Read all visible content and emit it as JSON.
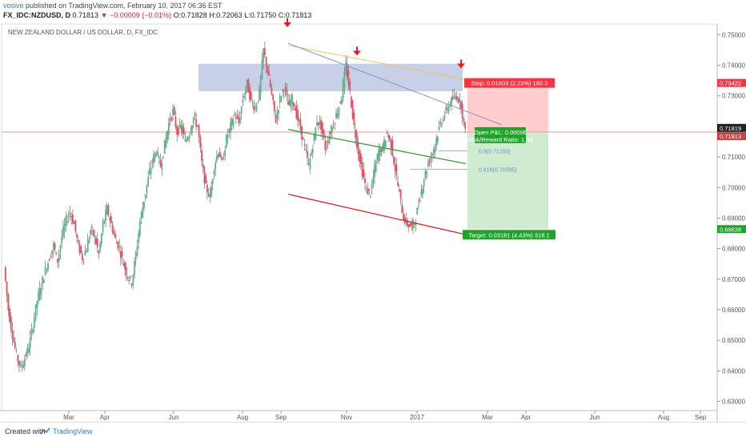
{
  "header": {
    "publisher": "vosive",
    "published_text": "published on TradingView.com, February 10, 2017 06:36 EST",
    "symbol": "FX_IDC:NZDUSD, D",
    "last": "0.71813",
    "change": "▼ −0.00009 (−0.01%)",
    "open": "O:0.71828",
    "high": "H:0.72063",
    "low": "L:0.71750",
    "close": "C:0.71813"
  },
  "chart_title": "NEW ZEALAND DOLLAR / US DOLLAR, D, FX_IDC",
  "footer": {
    "created_with": "Created with",
    "brand": "TradingView"
  },
  "colors": {
    "up": "#53b987",
    "down": "#eb4d5c",
    "stop": "#f23645",
    "target": "#22a12c",
    "zone": "#9aa9d6",
    "current": "#d04040"
  },
  "chart_data": {
    "type": "candlestick",
    "y_range": [
      0.627,
      0.7535
    ],
    "y_ticks": [
      "0.75000",
      "0.74000",
      "0.73000",
      "0.72000",
      "0.71000",
      "0.70000",
      "0.69000",
      "0.68000",
      "0.67000",
      "0.66000",
      "0.65000",
      "0.64000",
      "0.63000"
    ],
    "y_tick_values": [
      0.75,
      0.74,
      0.73,
      0.72,
      0.71,
      0.7,
      0.69,
      0.68,
      0.67,
      0.66,
      0.65,
      0.64,
      0.63
    ],
    "x_ticks": [
      "Mar",
      "Apr",
      "Jun",
      "Aug",
      "Sep",
      "Nov",
      "2017",
      "Mar",
      "Apr",
      "Jun",
      "Aug",
      "Sep"
    ],
    "price_labels": [
      {
        "text": "0.73422",
        "value": 0.73422,
        "kind": "stop"
      },
      {
        "text": "0.71819",
        "value": 0.71819,
        "kind": "dark"
      },
      {
        "text": "0.71813",
        "value": 0.71813,
        "kind": "current"
      },
      {
        "text": "0.68638",
        "value": 0.68638,
        "kind": "target"
      }
    ],
    "position": {
      "stop_label": "Stop: 0.01603 (2.23%) 160.3",
      "pnl_label": "Open P&L: 0.00006",
      "rr_label": "Risk/Reward Ratio: 1.98",
      "target_label": "Target: 0.03181 (4.43%) 318.1",
      "entry": 0.71819,
      "stop": 0.73422,
      "target": 0.68638
    },
    "fib_labels": [
      {
        "text": "0.5(0.71200)",
        "value": 0.712
      },
      {
        "text": "0.618(0.70595)",
        "value": 0.70595
      }
    ],
    "price_path": [
      0.674,
      0.66,
      0.652,
      0.645,
      0.641,
      0.644,
      0.648,
      0.655,
      0.663,
      0.668,
      0.673,
      0.677,
      0.681,
      0.676,
      0.684,
      0.689,
      0.692,
      0.688,
      0.681,
      0.677,
      0.68,
      0.686,
      0.684,
      0.678,
      0.688,
      0.693,
      0.688,
      0.683,
      0.68,
      0.675,
      0.671,
      0.669,
      0.678,
      0.689,
      0.696,
      0.703,
      0.709,
      0.712,
      0.707,
      0.714,
      0.721,
      0.725,
      0.718,
      0.72,
      0.715,
      0.718,
      0.723,
      0.72,
      0.708,
      0.7,
      0.697,
      0.707,
      0.712,
      0.708,
      0.716,
      0.72,
      0.724,
      0.721,
      0.729,
      0.734,
      0.728,
      0.726,
      0.731,
      0.745,
      0.738,
      0.73,
      0.722,
      0.729,
      0.733,
      0.727,
      0.729,
      0.724,
      0.719,
      0.713,
      0.707,
      0.714,
      0.722,
      0.72,
      0.713,
      0.717,
      0.721,
      0.725,
      0.73,
      0.74,
      0.731,
      0.72,
      0.712,
      0.705,
      0.699,
      0.698,
      0.706,
      0.712,
      0.713,
      0.718,
      0.714,
      0.706,
      0.698,
      0.69,
      0.688,
      0.687,
      0.69,
      0.697,
      0.703,
      0.708,
      0.711,
      0.716,
      0.721,
      0.724,
      0.727,
      0.729,
      0.73,
      0.727,
      0.718
    ]
  }
}
